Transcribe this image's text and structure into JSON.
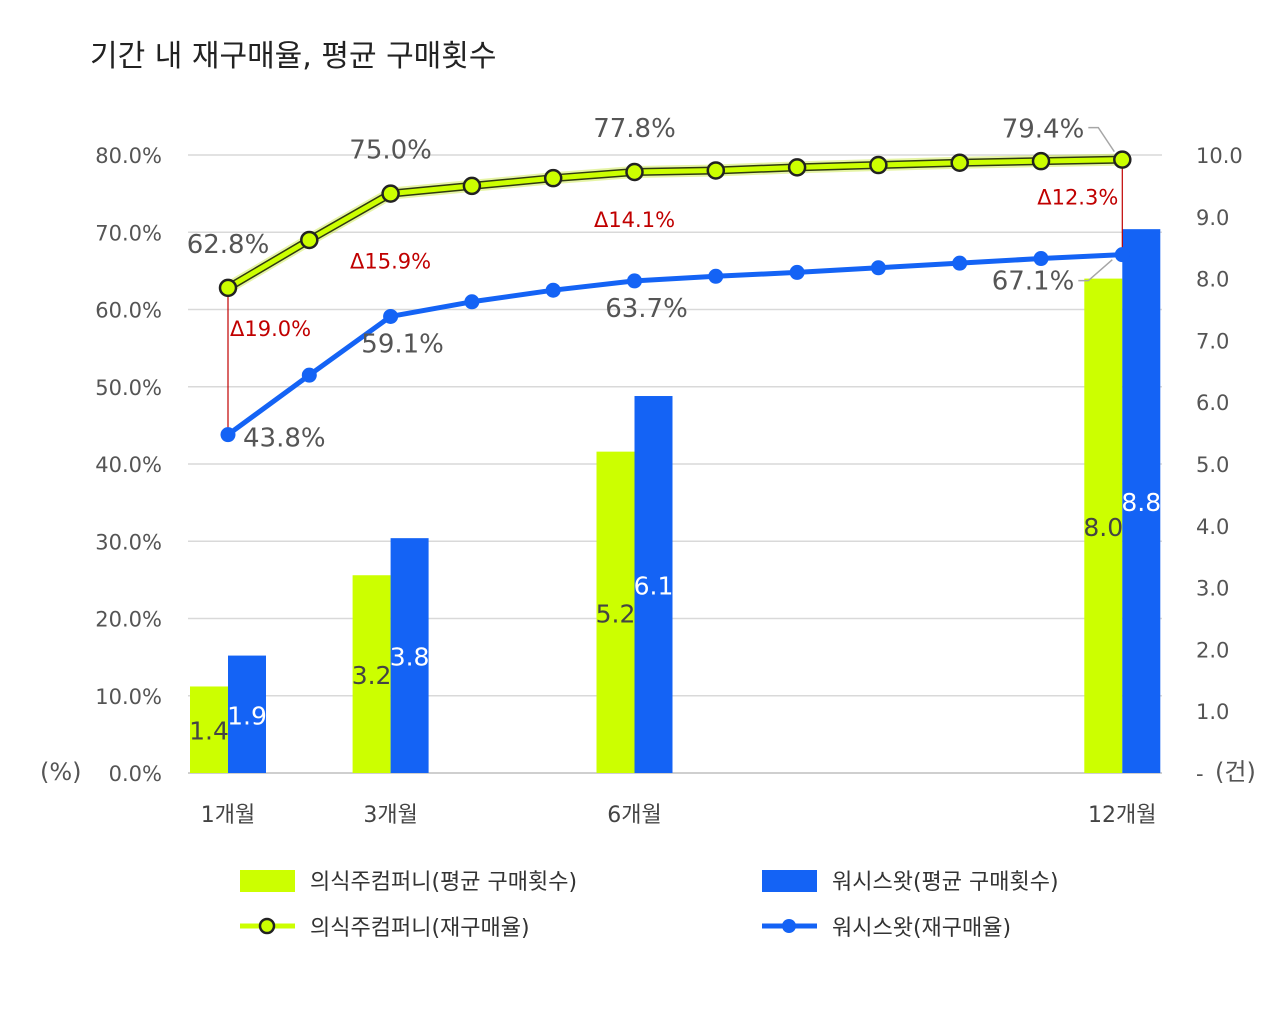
{
  "colors": {
    "company_a": "#ccff00",
    "company_b": "#1463f5",
    "delta": "#c00000",
    "grid": "#d9d9d9"
  },
  "units": {
    "left": "(%)",
    "right": "(건)"
  },
  "legend": [
    {
      "label": "의식주컴퍼니(평균 구매횟수)",
      "kind": "bar",
      "series": "company_a"
    },
    {
      "label": "워시스왓(평균 구매횟수)",
      "kind": "bar",
      "series": "company_b"
    },
    {
      "label": "의식주컴퍼니(재구매율)",
      "kind": "line",
      "series": "company_a"
    },
    {
      "label": "워시스왓(재구매율)",
      "kind": "line",
      "series": "company_b"
    }
  ],
  "chart_data": {
    "type": "bar+line",
    "title": "기간 내 재구매율, 평균 구매횟수",
    "x": [
      1,
      2,
      3,
      4,
      5,
      6,
      7,
      8,
      9,
      10,
      11,
      12
    ],
    "category_labels": [
      {
        "month": 1,
        "label": "1개월"
      },
      {
        "month": 3,
        "label": "3개월"
      },
      {
        "month": 6,
        "label": "6개월"
      },
      {
        "month": 12,
        "label": "12개월"
      }
    ],
    "left_axis": {
      "ticks": [
        "0.0%",
        "10.0%",
        "20.0%",
        "30.0%",
        "40.0%",
        "50.0%",
        "60.0%",
        "70.0%",
        "80.0%"
      ],
      "ylim": [
        0,
        80
      ]
    },
    "right_axis": {
      "ticks": [
        "-",
        "1.0",
        "2.0",
        "3.0",
        "4.0",
        "5.0",
        "6.0",
        "7.0",
        "8.0",
        "9.0",
        "10.0"
      ],
      "ylim": [
        0,
        10
      ]
    },
    "grid": true,
    "legend_position": "bottom",
    "bars": {
      "months": [
        1,
        3,
        6,
        12
      ],
      "series": [
        {
          "name": "의식주컴퍼니(평균 구매횟수)",
          "values": [
            1.4,
            3.2,
            5.2,
            8.0
          ],
          "labels": [
            "1.4",
            "3.2",
            "5.2",
            "8.0"
          ]
        },
        {
          "name": "워시스왓(평균 구매횟수)",
          "values": [
            1.9,
            3.8,
            6.1,
            8.8
          ],
          "labels": [
            "1.9",
            "3.8",
            "6.1",
            "8.8"
          ]
        }
      ]
    },
    "lines": [
      {
        "name": "의식주컴퍼니(재구매율)",
        "values": [
          62.8,
          69.0,
          75.0,
          76.0,
          77.0,
          77.8,
          78.0,
          78.4,
          78.7,
          79.0,
          79.2,
          79.4
        ]
      },
      {
        "name": "워시스왓(재구매율)",
        "values": [
          43.8,
          51.5,
          59.1,
          61.0,
          62.5,
          63.7,
          64.3,
          64.8,
          65.4,
          66.0,
          66.6,
          67.1
        ]
      }
    ],
    "point_labels": [
      {
        "series": 0,
        "month": 1,
        "text": "62.8%"
      },
      {
        "series": 0,
        "month": 3,
        "text": "75.0%"
      },
      {
        "series": 0,
        "month": 6,
        "text": "77.8%"
      },
      {
        "series": 0,
        "month": 12,
        "text": "79.4%"
      },
      {
        "series": 1,
        "month": 1,
        "text": "43.8%"
      },
      {
        "series": 1,
        "month": 3,
        "text": "59.1%"
      },
      {
        "series": 1,
        "month": 6,
        "text": "63.7%"
      },
      {
        "series": 1,
        "month": 12,
        "text": "67.1%"
      }
    ],
    "deltas": [
      {
        "month": 1,
        "text": "Δ19.0%"
      },
      {
        "month": 3,
        "text": "Δ15.9%"
      },
      {
        "month": 6,
        "text": "Δ14.1%"
      },
      {
        "month": 12,
        "text": "Δ12.3%"
      }
    ]
  }
}
